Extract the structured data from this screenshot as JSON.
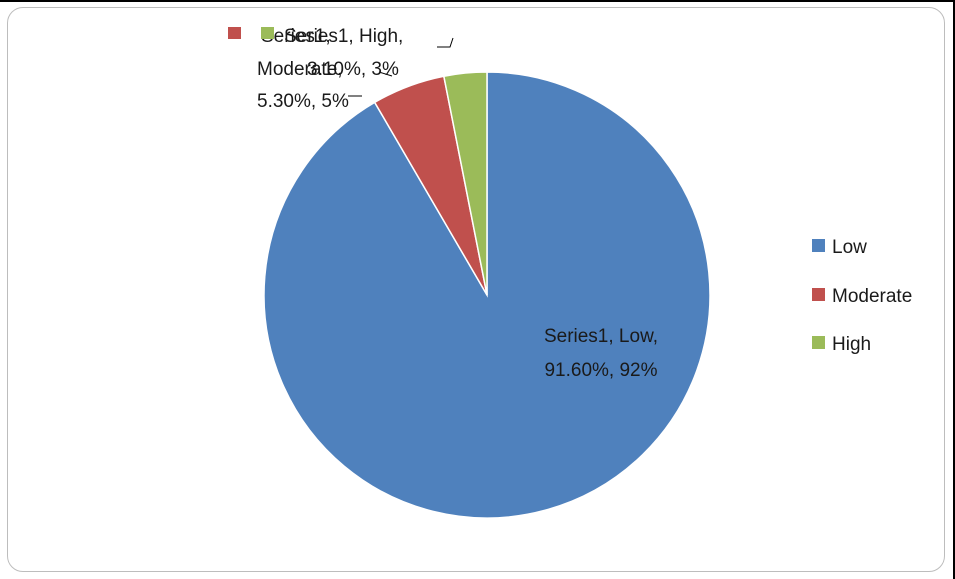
{
  "chart_data": {
    "type": "pie",
    "series": [
      {
        "name": "Series1",
        "categories": [
          "Low",
          "Moderate",
          "High"
        ],
        "values": [
          91.6,
          5.3,
          3.1
        ]
      }
    ],
    "colors": [
      "#4f81bd",
      "#c0504d",
      "#9bbb59"
    ],
    "data_labels": {
      "low": [
        "Series1, Low,",
        "91.60%, 92%"
      ],
      "moderate": [
        "Series1,",
        "Moderate,",
        "5.30%, 5%"
      ],
      "high": [
        "Series1, High,",
        "3.10%, 3%"
      ]
    },
    "legend": {
      "position": "right",
      "entries": [
        "Low",
        "Moderate",
        "High"
      ]
    },
    "start_angle_deg": 0,
    "direction": "clockwise"
  }
}
